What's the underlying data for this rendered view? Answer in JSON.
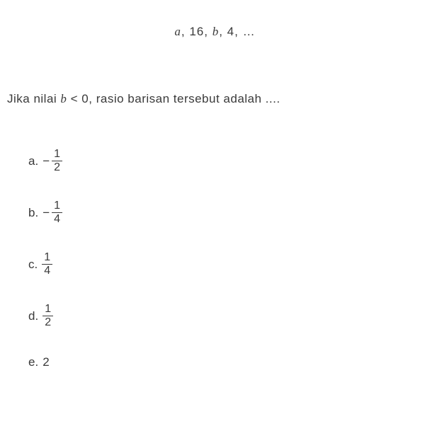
{
  "sequence": {
    "term1": "a",
    "term2": "16",
    "term3": "b",
    "term4": "4",
    "ellipsis": "…"
  },
  "question": {
    "prefix": "Jika nilai ",
    "variable": "b",
    "condition": " < 0",
    "suffix": ", rasio barisan tersebut adalah ...."
  },
  "options": {
    "a": {
      "label": "a.",
      "sign": "−",
      "numerator": "1",
      "denominator": "2",
      "type": "fraction_neg"
    },
    "b": {
      "label": "b.",
      "sign": "−",
      "numerator": "1",
      "denominator": "4",
      "type": "fraction_neg"
    },
    "c": {
      "label": "c.",
      "numerator": "1",
      "denominator": "4",
      "type": "fraction"
    },
    "d": {
      "label": "d.",
      "numerator": "1",
      "denominator": "2",
      "type": "fraction"
    },
    "e": {
      "label": "e.",
      "value": "2",
      "type": "plain"
    }
  },
  "colors": {
    "text": "#3a3a3a",
    "background": "#ffffff"
  },
  "font": {
    "body_size": 17,
    "fraction_size": 16
  }
}
